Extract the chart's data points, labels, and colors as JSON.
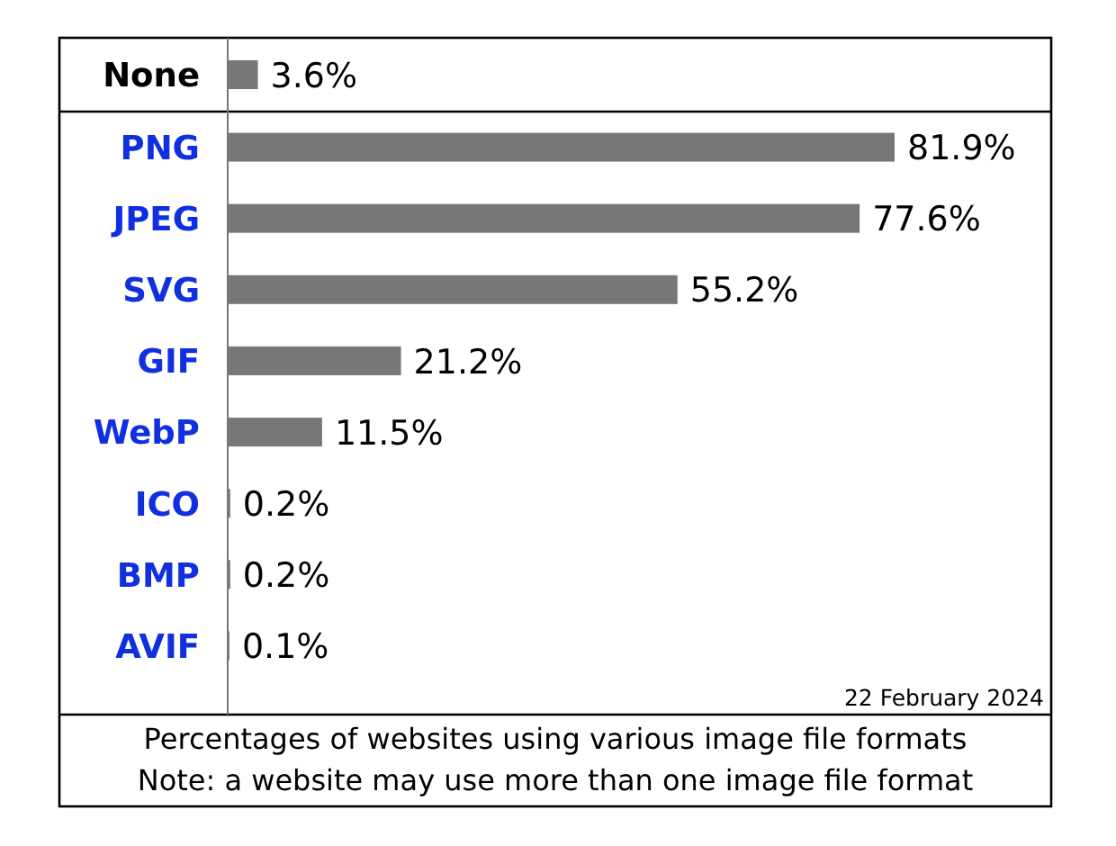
{
  "chart_data": {
    "type": "bar",
    "orientation": "horizontal",
    "title": "Percentages of websites using various image file formats",
    "annotations": [
      "22 February 2024",
      "Note: a website may use more than one image file format"
    ],
    "categories": [
      "None",
      "PNG",
      "JPEG",
      "SVG",
      "GIF",
      "WebP",
      "ICO",
      "BMP",
      "AVIF"
    ],
    "values": [
      3.6,
      81.9,
      77.6,
      55.2,
      21.2,
      11.5,
      0.2,
      0.2,
      0.1
    ],
    "color": "#777777",
    "value_labels": [
      "3.6%",
      "81.9%",
      "77.6%",
      "55.2%",
      "21.2%",
      "11.5%",
      "0.2%",
      "0.2%",
      "0.1%"
    ]
  }
}
